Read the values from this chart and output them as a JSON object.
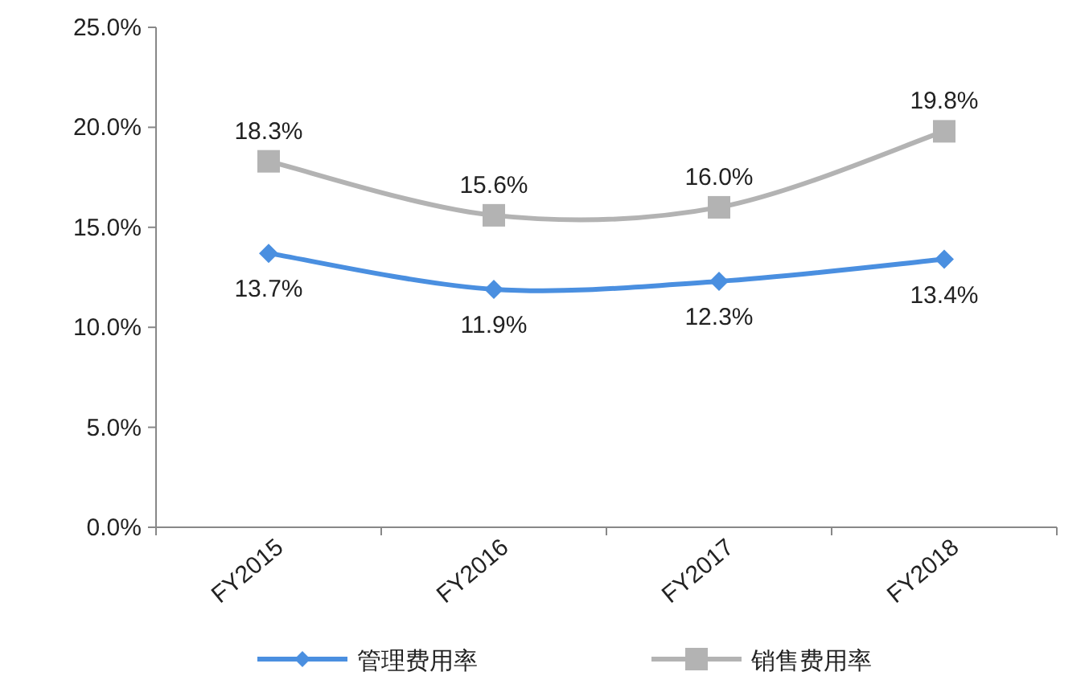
{
  "chart_data": {
    "type": "line",
    "categories": [
      "FY2015",
      "FY2016",
      "FY2017",
      "FY2018"
    ],
    "series": [
      {
        "name": "管理费用率",
        "color": "#4a8fe0",
        "marker": "diamond",
        "values": [
          13.7,
          11.9,
          12.3,
          13.4
        ],
        "value_labels": [
          "13.7%",
          "11.9%",
          "12.3%",
          "13.4%"
        ]
      },
      {
        "name": "销售费用率",
        "color": "#b3b3b3",
        "marker": "square",
        "values": [
          18.3,
          15.6,
          16.0,
          19.8
        ],
        "value_labels": [
          "18.3%",
          "15.6%",
          "16.0%",
          "19.8%"
        ]
      }
    ],
    "ylim": [
      0,
      25
    ],
    "yticks": [
      {
        "value": 0,
        "label": "0.0%"
      },
      {
        "value": 5,
        "label": "5.0%"
      },
      {
        "value": 10,
        "label": "10.0%"
      },
      {
        "value": 15,
        "label": "15.0%"
      },
      {
        "value": 20,
        "label": "20.0%"
      },
      {
        "value": 25,
        "label": "25.0%"
      }
    ],
    "legend": "bottom",
    "grid": false
  }
}
